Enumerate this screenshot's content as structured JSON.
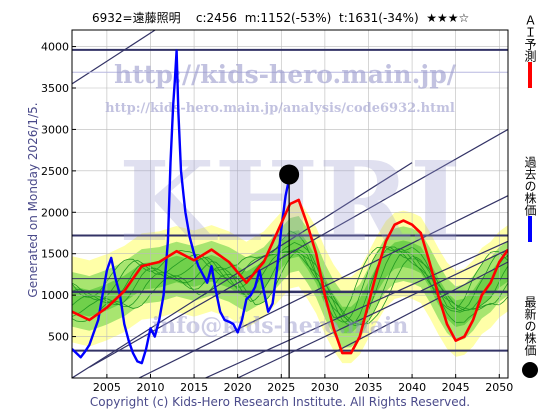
{
  "header": {
    "code": "6932=遠藤照明",
    "current": "c:2456",
    "min_label": "m:1152(-53%)",
    "target_label": "t:1631(-34%)",
    "rating": "★★★☆"
  },
  "generated": "Generated on Monday 2026/1/5.",
  "copyright": "Copyright (c) Kids-Hero Research Institute. All Rights Reserved.",
  "watermarks": {
    "url1": "http://kids-hero.main.jp/",
    "url2": "http://kids-hero.main.jp/analysis/code6932.html",
    "logo": "KHRI",
    "email": "info@kids-hero.main"
  },
  "legend": {
    "ai_label": "ＡＩ予測",
    "past_label": "過去の株価",
    "latest_label": "最新の株価"
  },
  "colors": {
    "price": "#0000ff",
    "prediction": "#ff0000",
    "band_green": "#33cc33",
    "band_yellow": "#ffff99",
    "channel": "#333366"
  },
  "chart_data": {
    "type": "line",
    "xlim": [
      2001,
      2051
    ],
    "ylim": [
      0,
      4200
    ],
    "x_ticks": [
      2005,
      2010,
      2015,
      2020,
      2025,
      2030,
      2035,
      2040,
      2045,
      2050
    ],
    "y_ticks": [
      500,
      1000,
      1500,
      2000,
      2500,
      3000,
      3500,
      4000
    ],
    "grid": true,
    "series": [
      {
        "name": "過去の株価",
        "color": "#0000ff",
        "x": [
          2001.0,
          2001.5,
          2002.0,
          2002.5,
          2003.0,
          2003.5,
          2004.0,
          2004.5,
          2005.0,
          2005.5,
          2006.0,
          2006.5,
          2007.0,
          2007.5,
          2008.0,
          2008.5,
          2009.0,
          2009.5,
          2010.0,
          2010.5,
          2011.0,
          2011.5,
          2012.0,
          2012.3,
          2012.6,
          2012.8,
          2013.0,
          2013.2,
          2013.5,
          2013.8,
          2014.0,
          2014.5,
          2015.0,
          2015.5,
          2016.0,
          2016.5,
          2017.0,
          2017.5,
          2018.0,
          2018.5,
          2019.0,
          2019.5,
          2020.0,
          2020.5,
          2021.0,
          2021.5,
          2022.0,
          2022.5,
          2023.0,
          2023.5,
          2024.0,
          2024.5,
          2025.0,
          2025.5,
          2026.0
        ],
        "y": [
          350,
          300,
          250,
          320,
          400,
          550,
          700,
          1000,
          1300,
          1450,
          1200,
          1000,
          650,
          450,
          300,
          200,
          180,
          350,
          600,
          500,
          700,
          1000,
          1650,
          2600,
          3300,
          3600,
          3950,
          3200,
          2500,
          2200,
          2000,
          1700,
          1500,
          1350,
          1250,
          1150,
          1350,
          1050,
          800,
          700,
          680,
          650,
          550,
          700,
          950,
          1000,
          1100,
          1300,
          1050,
          800,
          900,
          1300,
          1800,
          2200,
          2456
        ]
      },
      {
        "name": "ＡＩ予測",
        "color": "#ff0000",
        "x": [
          2001,
          2003,
          2005,
          2007,
          2009,
          2011,
          2013,
          2015,
          2017,
          2019,
          2021,
          2023,
          2024.5,
          2026,
          2027,
          2028,
          2029,
          2030,
          2031,
          2032,
          2033,
          2034,
          2035,
          2036,
          2037,
          2038,
          2039,
          2040,
          2041,
          2042,
          2043,
          2044,
          2045,
          2046,
          2047,
          2048,
          2049,
          2050,
          2051
        ],
        "y": [
          800,
          700,
          850,
          1050,
          1350,
          1400,
          1530,
          1420,
          1550,
          1400,
          1150,
          1400,
          1750,
          2100,
          2150,
          1850,
          1500,
          1000,
          600,
          300,
          300,
          500,
          900,
          1300,
          1650,
          1850,
          1900,
          1850,
          1750,
          1400,
          1000,
          650,
          450,
          500,
          700,
          1000,
          1150,
          1400,
          1550
        ]
      }
    ],
    "latest_point": {
      "x": 2025.9,
      "y": 2456
    },
    "annotations": [
      "m:1152(-53%)",
      "t:1631(-34%)"
    ]
  }
}
